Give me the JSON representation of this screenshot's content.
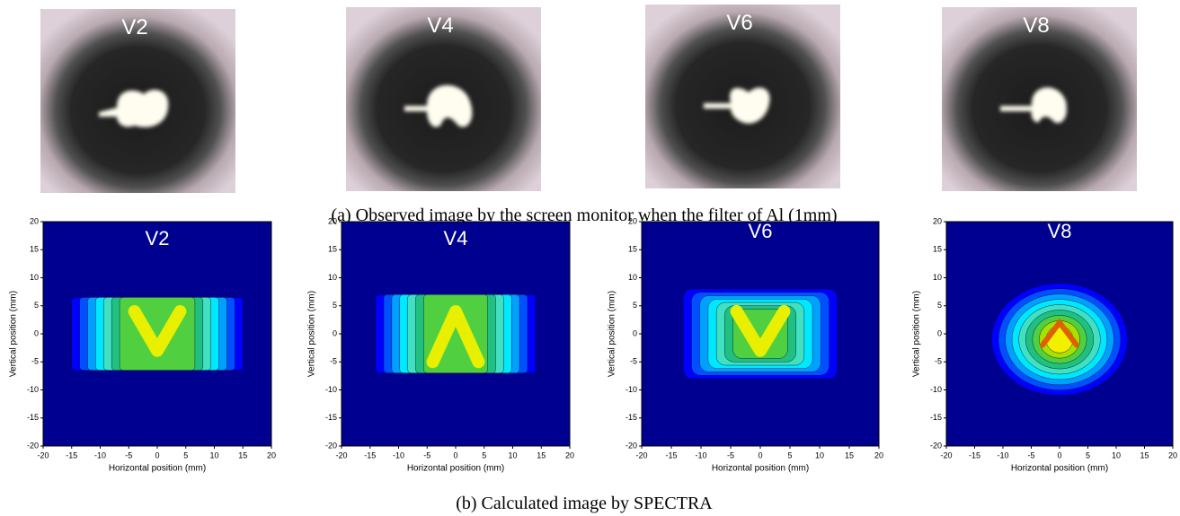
{
  "photos": [
    {
      "label": "V2"
    },
    {
      "label": "V4"
    },
    {
      "label": "V6"
    },
    {
      "label": "V8"
    }
  ],
  "caption_a": "(a) Observed image by the screen monitor when the filter of Al (1mm)",
  "plots": [
    {
      "label": "V2",
      "xlabel": "Horizontal position (mm)",
      "ylabel": "Vertical position (mm)",
      "xticks": [
        -20,
        -15,
        -10,
        -5,
        0,
        5,
        10,
        15,
        20
      ],
      "yticks": [
        -20,
        -15,
        -10,
        -5,
        0,
        5,
        10,
        15,
        20
      ]
    },
    {
      "label": "V4",
      "xlabel": "Horizontal position (mm)",
      "ylabel": "Vertical position (mm)",
      "xticks": [
        -20,
        -15,
        -10,
        -5,
        0,
        5,
        10,
        15,
        20
      ],
      "yticks": [
        -20,
        -15,
        -10,
        -5,
        0,
        5,
        10,
        15,
        20
      ]
    },
    {
      "label": "V6",
      "xlabel": "Horizontal position (mm)",
      "ylabel": "Vertical position (mm)",
      "xticks": [
        -20,
        -15,
        -10,
        -5,
        0,
        5,
        10,
        15,
        20
      ],
      "yticks": [
        -20,
        -15,
        -10,
        -5,
        0,
        5,
        10,
        15,
        20
      ]
    },
    {
      "label": "V8",
      "xlabel": "Horizontal position (mm)",
      "ylabel": "Vertical position (mm)",
      "xticks": [
        -20,
        -15,
        -10,
        -5,
        0,
        5,
        10,
        15,
        20
      ],
      "yticks": [
        -20,
        -15,
        -10,
        -5,
        0,
        5,
        10,
        15,
        20
      ]
    }
  ],
  "caption_b": "(b) Calculated image by SPECTRA"
}
